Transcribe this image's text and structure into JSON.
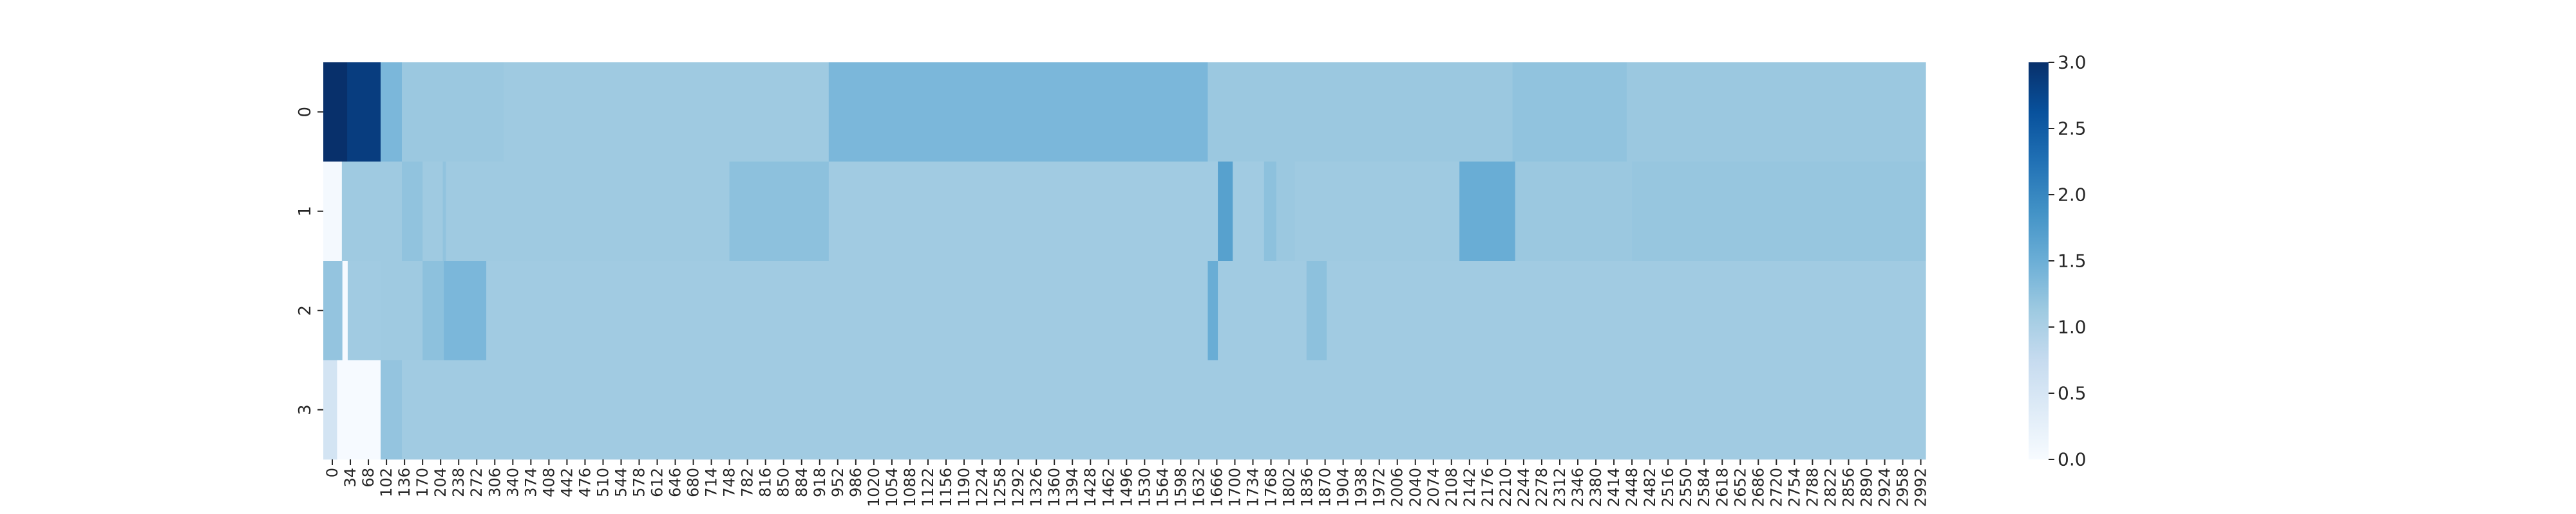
{
  "chart_data": {
    "type": "heatmap",
    "title": "",
    "xlabel": "",
    "ylabel": "",
    "x_tick_step": 34,
    "x_tick_labels": [
      "0",
      "34",
      "68",
      "102",
      "136",
      "170",
      "204",
      "238",
      "272",
      "306",
      "340",
      "374",
      "408",
      "442",
      "476",
      "510",
      "544",
      "578",
      "612",
      "646",
      "680",
      "714",
      "748",
      "782",
      "816",
      "850",
      "884",
      "918",
      "952",
      "986",
      "1020",
      "1054",
      "1088",
      "1122",
      "1156",
      "1190",
      "1224",
      "1258",
      "1292",
      "1326",
      "1360",
      "1394",
      "1428",
      "1462",
      "1496",
      "1530",
      "1564",
      "1598",
      "1632",
      "1666",
      "1700",
      "1734",
      "1768",
      "1802",
      "1836",
      "1870",
      "1904",
      "1938",
      "1972",
      "2006",
      "2040",
      "2074",
      "2108",
      "2142",
      "2176",
      "2210",
      "2244",
      "2278",
      "2312",
      "2346",
      "2380",
      "2414",
      "2448",
      "2482",
      "2516",
      "2550",
      "2584",
      "2618",
      "2652",
      "2686",
      "2720",
      "2754",
      "2788",
      "2822",
      "2856",
      "2890",
      "2924",
      "2958",
      "2992"
    ],
    "y_tick_labels": [
      "0",
      "1",
      "2",
      "3"
    ],
    "x_range": [
      0,
      3018
    ],
    "colorbar": {
      "colormap": "Blues",
      "range": [
        0.0,
        3.0
      ],
      "tick_labels": [
        "0.0",
        "0.5",
        "1.0",
        "1.5",
        "2.0",
        "2.5",
        "3.0"
      ]
    },
    "rows": [
      {
        "label": "0",
        "segments": [
          {
            "x0": 0,
            "x1": 45,
            "value": 3.0
          },
          {
            "x0": 45,
            "x1": 108,
            "value": 2.85
          },
          {
            "x0": 108,
            "x1": 148,
            "value": 1.38
          },
          {
            "x0": 148,
            "x1": 340,
            "value": 1.15
          },
          {
            "x0": 340,
            "x1": 952,
            "value": 1.12
          },
          {
            "x0": 952,
            "x1": 1666,
            "value": 1.38
          },
          {
            "x0": 1666,
            "x1": 2240,
            "value": 1.15
          },
          {
            "x0": 2240,
            "x1": 2455,
            "value": 1.22
          },
          {
            "x0": 2455,
            "x1": 3018,
            "value": 1.15
          }
        ]
      },
      {
        "label": "1",
        "segments": [
          {
            "x0": 0,
            "x1": 35,
            "value": 0.05
          },
          {
            "x0": 35,
            "x1": 148,
            "value": 1.12
          },
          {
            "x0": 148,
            "x1": 187,
            "value": 1.22
          },
          {
            "x0": 187,
            "x1": 225,
            "value": 1.12
          },
          {
            "x0": 225,
            "x1": 231,
            "value": 1.22
          },
          {
            "x0": 231,
            "x1": 765,
            "value": 1.12
          },
          {
            "x0": 765,
            "x1": 952,
            "value": 1.25
          },
          {
            "x0": 952,
            "x1": 1685,
            "value": 1.1
          },
          {
            "x0": 1685,
            "x1": 1713,
            "value": 1.68
          },
          {
            "x0": 1713,
            "x1": 1772,
            "value": 1.1
          },
          {
            "x0": 1772,
            "x1": 1795,
            "value": 1.25
          },
          {
            "x0": 1795,
            "x1": 1830,
            "value": 1.15
          },
          {
            "x0": 1830,
            "x1": 2140,
            "value": 1.12
          },
          {
            "x0": 2140,
            "x1": 2245,
            "value": 1.52
          },
          {
            "x0": 2245,
            "x1": 2465,
            "value": 1.15
          },
          {
            "x0": 2465,
            "x1": 3018,
            "value": 1.18
          }
        ]
      },
      {
        "label": "2",
        "segments": [
          {
            "x0": 0,
            "x1": 36,
            "value": 1.2
          },
          {
            "x0": 36,
            "x1": 46,
            "value": 0.02
          },
          {
            "x0": 46,
            "x1": 108,
            "value": 1.1
          },
          {
            "x0": 108,
            "x1": 187,
            "value": 1.12
          },
          {
            "x0": 187,
            "x1": 227,
            "value": 1.25
          },
          {
            "x0": 227,
            "x1": 307,
            "value": 1.38
          },
          {
            "x0": 307,
            "x1": 1666,
            "value": 1.1
          },
          {
            "x0": 1666,
            "x1": 1685,
            "value": 1.52
          },
          {
            "x0": 1685,
            "x1": 1852,
            "value": 1.1
          },
          {
            "x0": 1852,
            "x1": 1890,
            "value": 1.25
          },
          {
            "x0": 1890,
            "x1": 3018,
            "value": 1.1
          }
        ]
      },
      {
        "label": "3",
        "segments": [
          {
            "x0": 0,
            "x1": 26,
            "value": 0.55
          },
          {
            "x0": 26,
            "x1": 108,
            "value": 0.02
          },
          {
            "x0": 108,
            "x1": 148,
            "value": 1.2
          },
          {
            "x0": 148,
            "x1": 3018,
            "value": 1.1
          }
        ]
      }
    ]
  }
}
